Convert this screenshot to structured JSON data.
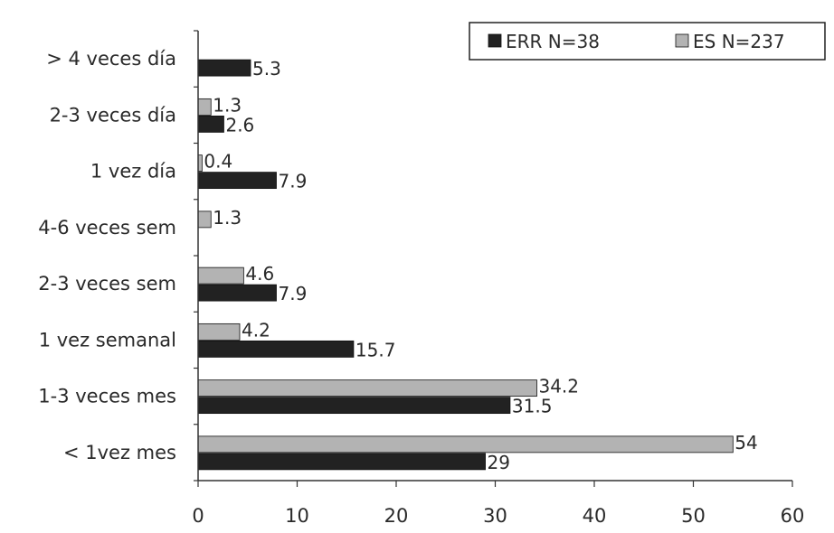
{
  "chart_data": {
    "type": "bar",
    "orientation": "horizontal",
    "categories": [
      "> 4 veces día",
      "2-3 veces día",
      "1 vez día",
      "4-6 veces sem",
      "2-3 veces sem",
      "1 vez semanal",
      "1-3 veces mes",
      "< 1vez mes"
    ],
    "series": [
      {
        "name": "ERR N=38",
        "color": "#222222",
        "values": [
          5.3,
          2.6,
          7.9,
          null,
          7.9,
          15.7,
          31.5,
          29
        ],
        "labels": [
          "5.3",
          "2.6",
          "7.9",
          "",
          "7.9",
          "15.7",
          "31.5",
          "29"
        ]
      },
      {
        "name": "ES N=237",
        "color": "#b3b3b3",
        "values": [
          null,
          1.3,
          0.4,
          1.3,
          4.6,
          4.2,
          34.2,
          54
        ],
        "labels": [
          "",
          "1.3",
          "0.4",
          "1.3",
          "4.6",
          "4.2",
          "34.2",
          "54"
        ]
      }
    ],
    "xlim": [
      0,
      60
    ],
    "xticks": [
      0,
      10,
      20,
      30,
      40,
      50,
      60
    ],
    "xtick_labels": [
      "0",
      "10",
      "20",
      "30",
      "40",
      "50",
      "60"
    ],
    "grid": false,
    "legend_position": "top-right",
    "title": "",
    "xlabel": "",
    "ylabel": ""
  }
}
